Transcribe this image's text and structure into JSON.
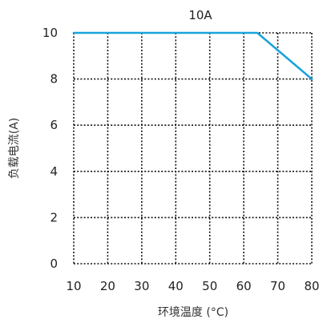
{
  "chart_data": {
    "type": "line",
    "title": "10A",
    "xlabel": "环境温度 (°C)",
    "ylabel": "负载电流(A)",
    "xlim": [
      10,
      80
    ],
    "ylim": [
      0,
      10
    ],
    "x_ticks": [
      10,
      20,
      30,
      40,
      50,
      60,
      70,
      80
    ],
    "y_ticks": [
      0,
      2,
      4,
      6,
      8,
      10
    ],
    "grid": true,
    "series": [
      {
        "color": "#1aa3dc",
        "points": [
          [
            10,
            10
          ],
          [
            64,
            10
          ],
          [
            80,
            8
          ]
        ]
      }
    ]
  }
}
